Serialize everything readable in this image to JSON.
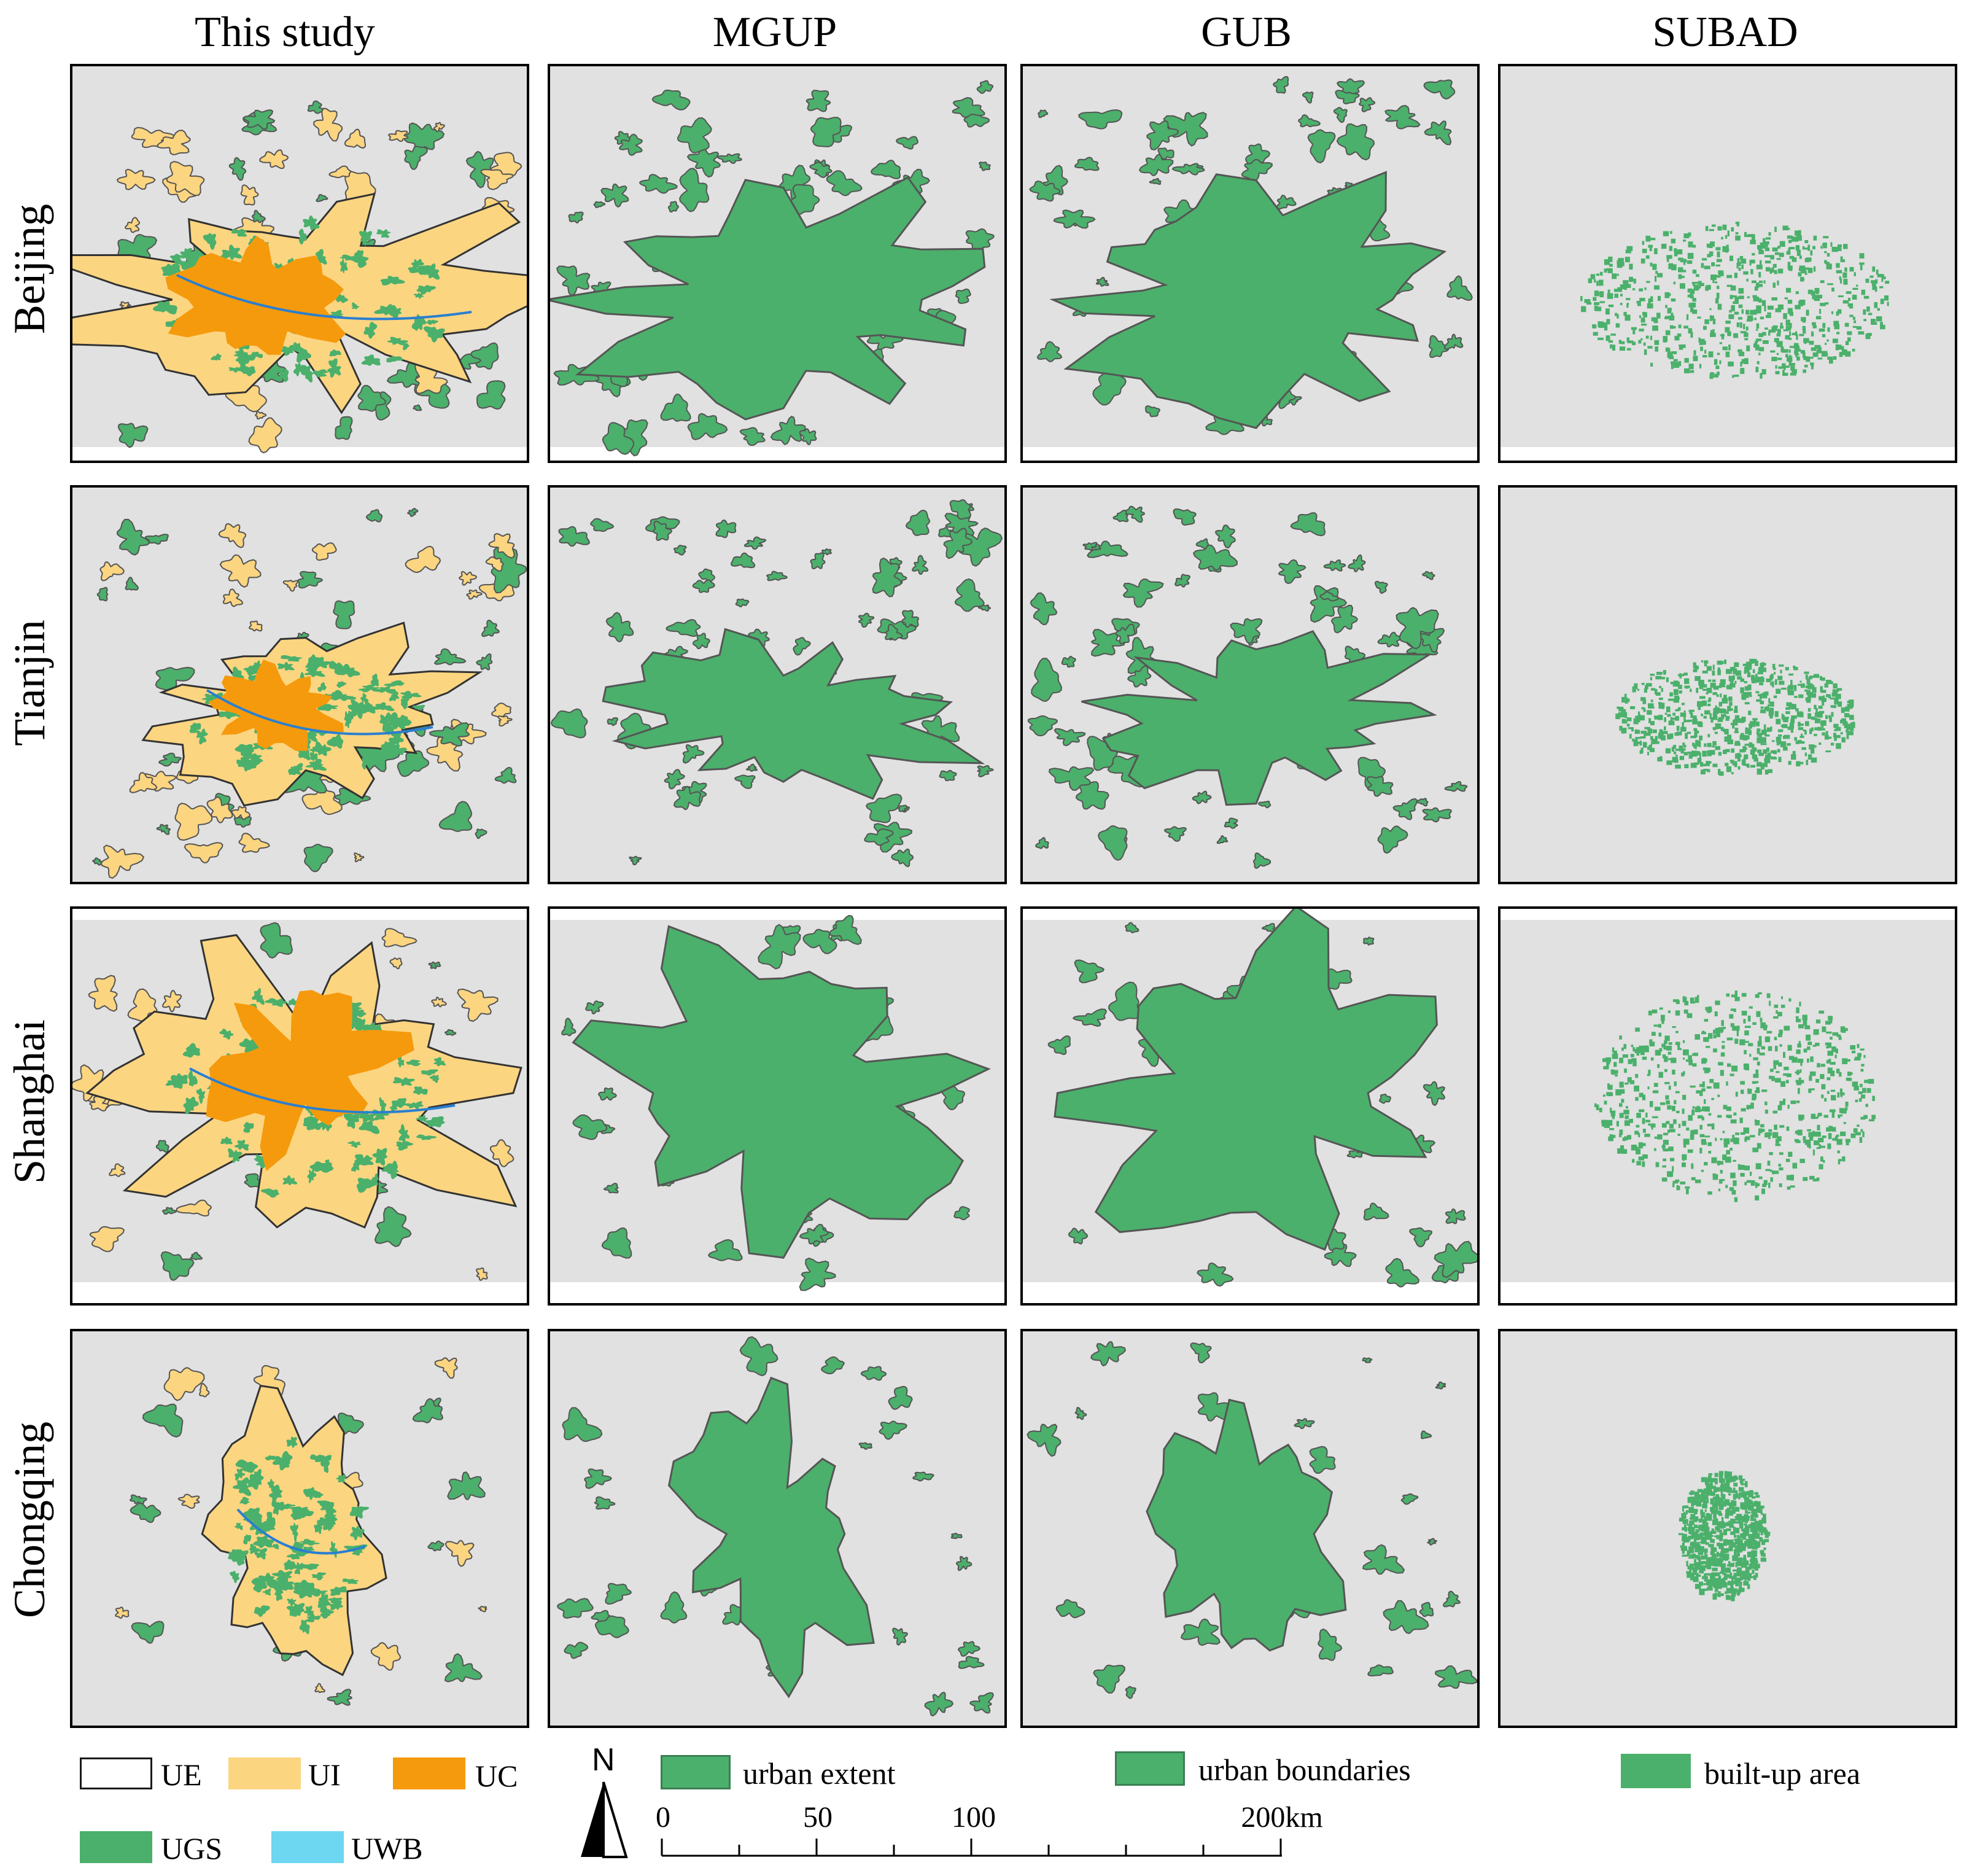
{
  "columns": [
    "This study",
    "MGUP",
    "GUB",
    "SUBAD"
  ],
  "rows": [
    "Beijing",
    "Tianjin",
    "Shanghai",
    "Chongqing"
  ],
  "legend_this_study": [
    {
      "code": "UE",
      "color": "#ffffff"
    },
    {
      "code": "UI",
      "color": "#fcd581"
    },
    {
      "code": "UC",
      "color": "#f59a0c"
    },
    {
      "code": "UGS",
      "color": "#4bb06b"
    },
    {
      "code": "UWB",
      "color": "#6dd6f0"
    }
  ],
  "legend_mgup": {
    "label": "urban extent",
    "color": "#4bb06b"
  },
  "legend_gub": {
    "label": "urban boundaries",
    "color": "#4bb06b"
  },
  "legend_subad": {
    "label": "built-up area",
    "color": "#4bb06b"
  },
  "north_arrow": {
    "label": "N",
    "icon": "north-arrow-icon"
  },
  "scale_bar": {
    "labels": [
      "0",
      "50",
      "100",
      "200km"
    ],
    "values": [
      0,
      50,
      100,
      200
    ],
    "max": 200,
    "unit": "km"
  },
  "colors": {
    "background": "#e1e1e1",
    "outline": "#555555",
    "green": "#4bb06b",
    "orange": "#f59a0c",
    "yellow": "#fcd581",
    "water": "#6dd6f0"
  }
}
